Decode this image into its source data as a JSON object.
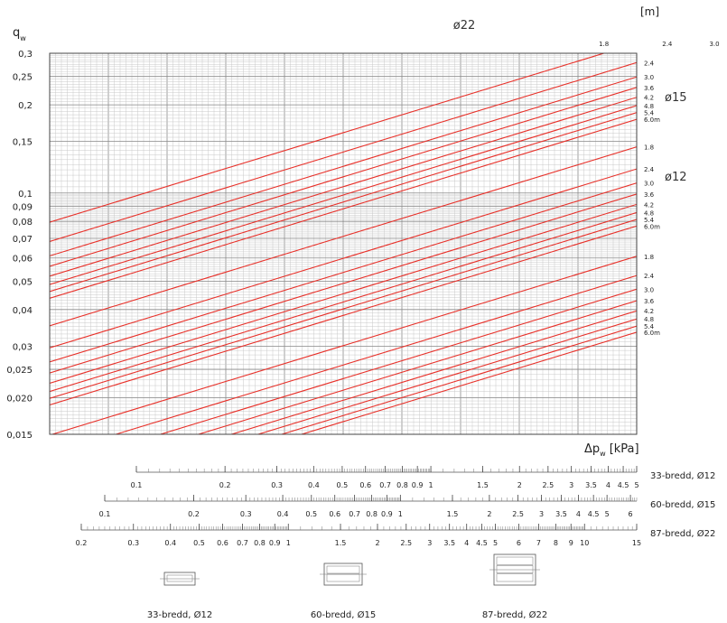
{
  "chart_data": {
    "type": "line",
    "x_scale": "log",
    "y_scale": "log",
    "xlim": [
      1.2,
      20
    ],
    "ylim": [
      0.015,
      0.3
    ],
    "ylabel": "q",
    "ylabel_sub": "w",
    "xlabel": "Δp",
    "xlabel_sub": "w",
    "xlabel_unit": "[kPa]",
    "length_unit": "[m]",
    "grid": true,
    "y_ticks": [
      "0,015",
      "0,020",
      "0,025",
      "0,03",
      "0,04",
      "0,05",
      "0,06",
      "0,07",
      "0,08",
      "0,09",
      "0,1",
      "0,15",
      "0,2",
      "0,25",
      "0,3"
    ],
    "y_tick_values": [
      0.015,
      0.02,
      0.025,
      0.03,
      0.04,
      0.05,
      0.06,
      0.07,
      0.08,
      0.09,
      0.1,
      0.15,
      0.2,
      0.25,
      0.3
    ],
    "line_color": "#e8312a",
    "groups": [
      {
        "label": "ø22",
        "slope": 0.5,
        "lengths": [
          "1.8",
          "2.4",
          "3.0",
          "3.6",
          "4.2",
          "4.8",
          "5.4",
          "6.0m"
        ],
        "q_at_xlim_min": [
          0.0795,
          0.0683,
          0.061,
          0.0562,
          0.052,
          0.0487,
          0.0461,
          0.0437
        ]
      },
      {
        "label": "ø15",
        "slope": 0.5,
        "lengths": [
          "1.8",
          "2.4",
          "3.0",
          "3.6",
          "4.2",
          "4.8",
          "5.4",
          "6.0m"
        ],
        "q_at_xlim_min": [
          0.0352,
          0.0296,
          0.0265,
          0.0243,
          0.0224,
          0.021,
          0.0199,
          0.0189
        ]
      },
      {
        "label": "ø12",
        "slope": 0.5,
        "lengths": [
          "1.8",
          "2.4",
          "3.0",
          "3.6",
          "4.2",
          "4.8",
          "5.4",
          "6.0m"
        ],
        "q_at_xlim_min": [
          0.0149,
          0.0128,
          0.0115,
          0.0105,
          0.0097,
          0.0091,
          0.0086,
          0.0082
        ]
      }
    ],
    "top_labels": [
      "1.8",
      "2.4",
      "3.0",
      "3.6",
      "4.2",
      "4.8",
      "5.4",
      "6.0m",
      "1.8"
    ],
    "scales": [
      {
        "label": "33-bredd, Ø12",
        "min": 0.1,
        "max": 5,
        "ticks": [
          "0.1",
          "0.2",
          "0.3",
          "0.4",
          "0.5",
          "0.6",
          "0.7",
          "0.8",
          "0.9",
          "1",
          "1.5",
          "2",
          "2.5",
          "3",
          "3.5",
          "4",
          "4.5",
          "5"
        ]
      },
      {
        "label": "60-bredd, Ø15",
        "min": 0.1,
        "max": 6.3,
        "ticks": [
          "0.1",
          "0.2",
          "0.3",
          "0.4",
          "0.5",
          "0.6",
          "0.7",
          "0.8",
          "0.9",
          "1",
          "1.5",
          "2",
          "2.5",
          "3",
          "3.5",
          "4",
          "4.5",
          "5",
          "6"
        ]
      },
      {
        "label": "87-bredd, Ø22",
        "min": 0.2,
        "max": 15,
        "ticks": [
          "0.2",
          "0.3",
          "0.4",
          "0.5",
          "0.6",
          "0.7",
          "0.8",
          "0.9",
          "1",
          "1.5",
          "2",
          "2.5",
          "3",
          "3.5",
          "4",
          "4.5",
          "5",
          "6",
          "7",
          "8",
          "9",
          "10",
          "15"
        ]
      }
    ],
    "profiles": [
      {
        "label": "33-bredd, Ø12",
        "tubes": 1
      },
      {
        "label": "60-bredd, Ø15",
        "tubes": 2
      },
      {
        "label": "87-bredd, Ø22",
        "tubes": 3
      }
    ]
  }
}
